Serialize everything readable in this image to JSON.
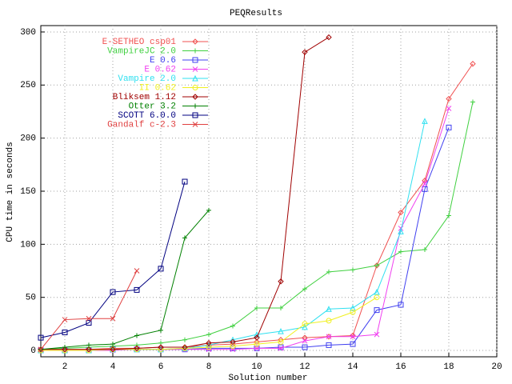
{
  "chart_data": {
    "type": "line",
    "title": "PEQResults",
    "x_label": "Solution number",
    "y_label": "CPU time in seconds",
    "x": [
      1,
      2,
      3,
      4,
      5,
      6,
      7,
      8,
      9,
      10,
      11,
      12,
      13,
      14,
      15,
      16,
      17,
      18,
      19
    ],
    "xlim": [
      1,
      20
    ],
    "xticks": [
      2,
      4,
      6,
      8,
      10,
      12,
      14,
      16,
      18,
      20
    ],
    "ylim": [
      -6,
      306
    ],
    "yticks": [
      0,
      50,
      100,
      150,
      200,
      250,
      300
    ],
    "grid": true,
    "legend": "upper-left",
    "series": [
      {
        "name": "E-SETHEO csp01",
        "color": "#f05050",
        "marker": "diamond",
        "values": [
          1,
          1,
          1,
          2,
          2,
          3,
          3,
          5,
          6,
          8,
          10,
          12,
          13,
          14,
          80,
          130,
          160,
          237,
          270
        ]
      },
      {
        "name": "VampireJC 2.0",
        "color": "#40d040",
        "marker": "plus",
        "values": [
          1,
          2,
          3,
          4,
          5,
          7,
          10,
          15,
          23,
          40,
          40,
          58,
          74,
          76,
          80,
          93,
          95,
          127,
          234
        ]
      },
      {
        "name": "E 0.6",
        "color": "#4040f0",
        "marker": "square",
        "values": [
          0,
          0,
          0,
          1,
          1,
          1,
          1,
          2,
          2,
          2,
          3,
          3,
          5,
          6,
          38,
          43,
          152,
          210,
          null
        ]
      },
      {
        "name": "E 0.62",
        "color": "#f040f0",
        "marker": "cross",
        "values": [
          0,
          0,
          0,
          0,
          1,
          1,
          1,
          1,
          1,
          2,
          2,
          9,
          13,
          13,
          15,
          115,
          157,
          228,
          null
        ]
      },
      {
        "name": "Vampire 2.0",
        "color": "#30e0f0",
        "marker": "triangle",
        "values": [
          0,
          0,
          0,
          1,
          1,
          1,
          2,
          5,
          10,
          15,
          18,
          22,
          39,
          40,
          55,
          112,
          216,
          null,
          null
        ]
      },
      {
        "name": "II 0.62",
        "color": "#f0f020",
        "marker": "circle",
        "values": [
          0,
          0,
          0,
          1,
          1,
          1,
          2,
          3,
          4,
          6,
          8,
          25,
          28,
          36,
          50,
          null,
          null,
          null,
          null
        ]
      },
      {
        "name": "Bliksem 1.12",
        "color": "#a00000",
        "marker": "diamond",
        "values": [
          1,
          1,
          1,
          1,
          2,
          3,
          3,
          7,
          8,
          12,
          65,
          281,
          295,
          null,
          null,
          null,
          null,
          null,
          null
        ]
      },
      {
        "name": "Otter 3.2",
        "color": "#008000",
        "marker": "plus",
        "values": [
          1,
          3,
          5,
          6,
          14,
          19,
          106,
          132,
          null,
          null,
          null,
          null,
          null,
          null,
          null,
          null,
          null,
          null,
          null
        ]
      },
      {
        "name": "SCOTT 6.0.0",
        "color": "#000080",
        "marker": "square",
        "values": [
          12,
          17,
          26,
          55,
          57,
          77,
          159,
          null,
          null,
          null,
          null,
          null,
          null,
          null,
          null,
          null,
          null,
          null,
          null
        ]
      },
      {
        "name": "Gandalf c-2.3",
        "color": "#e04040",
        "marker": "cross",
        "values": [
          1,
          29,
          30,
          30,
          75,
          null,
          null,
          null,
          null,
          null,
          null,
          null,
          null,
          null,
          null,
          null,
          null,
          null,
          null
        ]
      }
    ]
  }
}
